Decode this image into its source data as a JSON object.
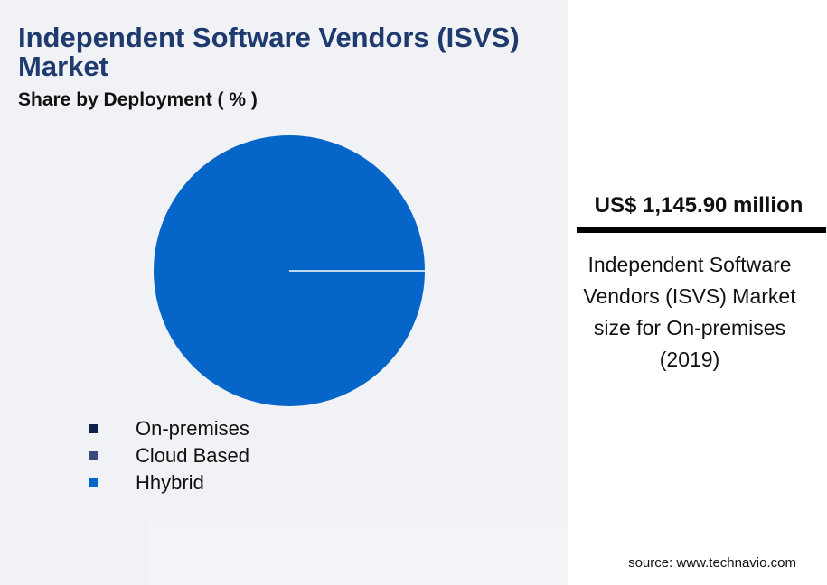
{
  "header": {
    "title": "Independent Software Vendors (ISVS) Market",
    "subtitle": "Share by Deployment ( % )"
  },
  "chart_data": {
    "type": "pie",
    "categories": [
      "On-premises",
      "Cloud Based",
      "Hhybrid"
    ],
    "values": [
      0,
      0,
      100
    ],
    "colors": [
      "#0f2148",
      "#3a4a7c",
      "#0565c8"
    ],
    "legend": "bottom-left"
  },
  "highlight": {
    "value": "US$ 1,145.90 million",
    "caption": "Independent Software Vendors (ISVS) Market size for On-premises (2019)"
  },
  "footer": {
    "source": "source: www.technavio.com"
  }
}
